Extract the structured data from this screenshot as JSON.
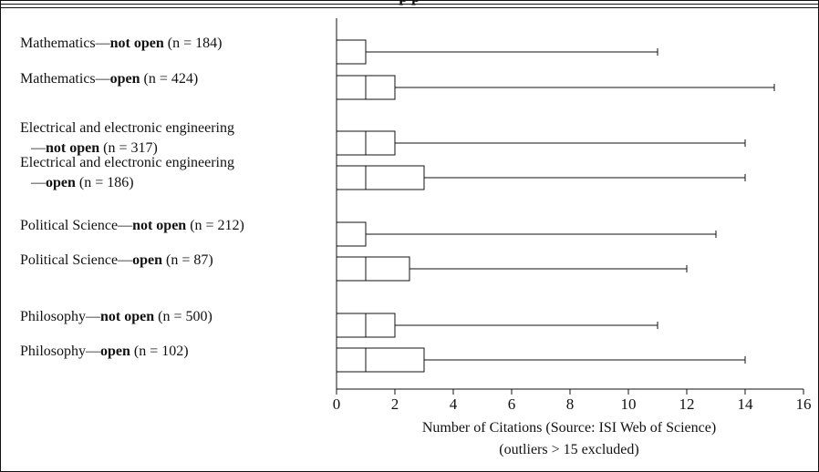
{
  "chart_data": {
    "type": "box",
    "title": "p       p",
    "xlabel": "Number of Citations (Source: ISI Web of Science)",
    "xlabel_note": "(outliers > 15 excluded)",
    "xlim": [
      0,
      16
    ],
    "xticks": [
      "0",
      "2",
      "4",
      "6",
      "8",
      "10",
      "12",
      "14",
      "16"
    ],
    "grid": false,
    "series": [
      {
        "lines": [
          {
            "text": "Mathematics—",
            "bold": false
          },
          {
            "text": "not open",
            "bold": true
          },
          {
            "text": " (n = 184)",
            "bold": false
          }
        ],
        "lines2": [],
        "min": 0,
        "q1": 0,
        "median": 0,
        "q3": 1,
        "max": 11
      },
      {
        "lines": [
          {
            "text": "Mathematics—",
            "bold": false
          },
          {
            "text": "open",
            "bold": true
          },
          {
            "text": " (n = 424)",
            "bold": false
          }
        ],
        "lines2": [],
        "min": 0,
        "q1": 0,
        "median": 1,
        "q3": 2,
        "max": 15
      },
      {
        "lines": [
          {
            "text": "Electrical and electronic engineering",
            "bold": false
          }
        ],
        "lines2": [
          {
            "text": "—",
            "bold": false
          },
          {
            "text": "not open",
            "bold": true
          },
          {
            "text": " (n = 317)",
            "bold": false
          }
        ],
        "min": 0,
        "q1": 0,
        "median": 1,
        "q3": 2,
        "max": 14
      },
      {
        "lines": [
          {
            "text": "Electrical and electronic engineering",
            "bold": false
          }
        ],
        "lines2": [
          {
            "text": "—",
            "bold": false
          },
          {
            "text": "open",
            "bold": true
          },
          {
            "text": " (n = 186)",
            "bold": false
          }
        ],
        "min": 0,
        "q1": 0,
        "median": 1,
        "q3": 3,
        "max": 14
      },
      {
        "lines": [
          {
            "text": "Political Science—",
            "bold": false
          },
          {
            "text": "not open",
            "bold": true
          },
          {
            "text": " (n = 212)",
            "bold": false
          }
        ],
        "lines2": [],
        "min": 0,
        "q1": 0,
        "median": 0,
        "q3": 1,
        "max": 13
      },
      {
        "lines": [
          {
            "text": "Political Science—",
            "bold": false
          },
          {
            "text": "open",
            "bold": true
          },
          {
            "text": " (n = 87)",
            "bold": false
          }
        ],
        "lines2": [],
        "min": 0,
        "q1": 0,
        "median": 1,
        "q3": 2.5,
        "max": 12
      },
      {
        "lines": [
          {
            "text": "Philosophy—",
            "bold": false
          },
          {
            "text": "not open",
            "bold": true
          },
          {
            "text": " (n = 500)",
            "bold": false
          }
        ],
        "lines2": [],
        "min": 0,
        "q1": 0,
        "median": 1,
        "q3": 2,
        "max": 11
      },
      {
        "lines": [
          {
            "text": "Philosophy—",
            "bold": false
          },
          {
            "text": "open",
            "bold": true
          },
          {
            "text": " (n = 102)",
            "bold": false
          }
        ],
        "lines2": [],
        "min": 0,
        "q1": 0,
        "median": 1,
        "q3": 3,
        "max": 14
      }
    ]
  }
}
